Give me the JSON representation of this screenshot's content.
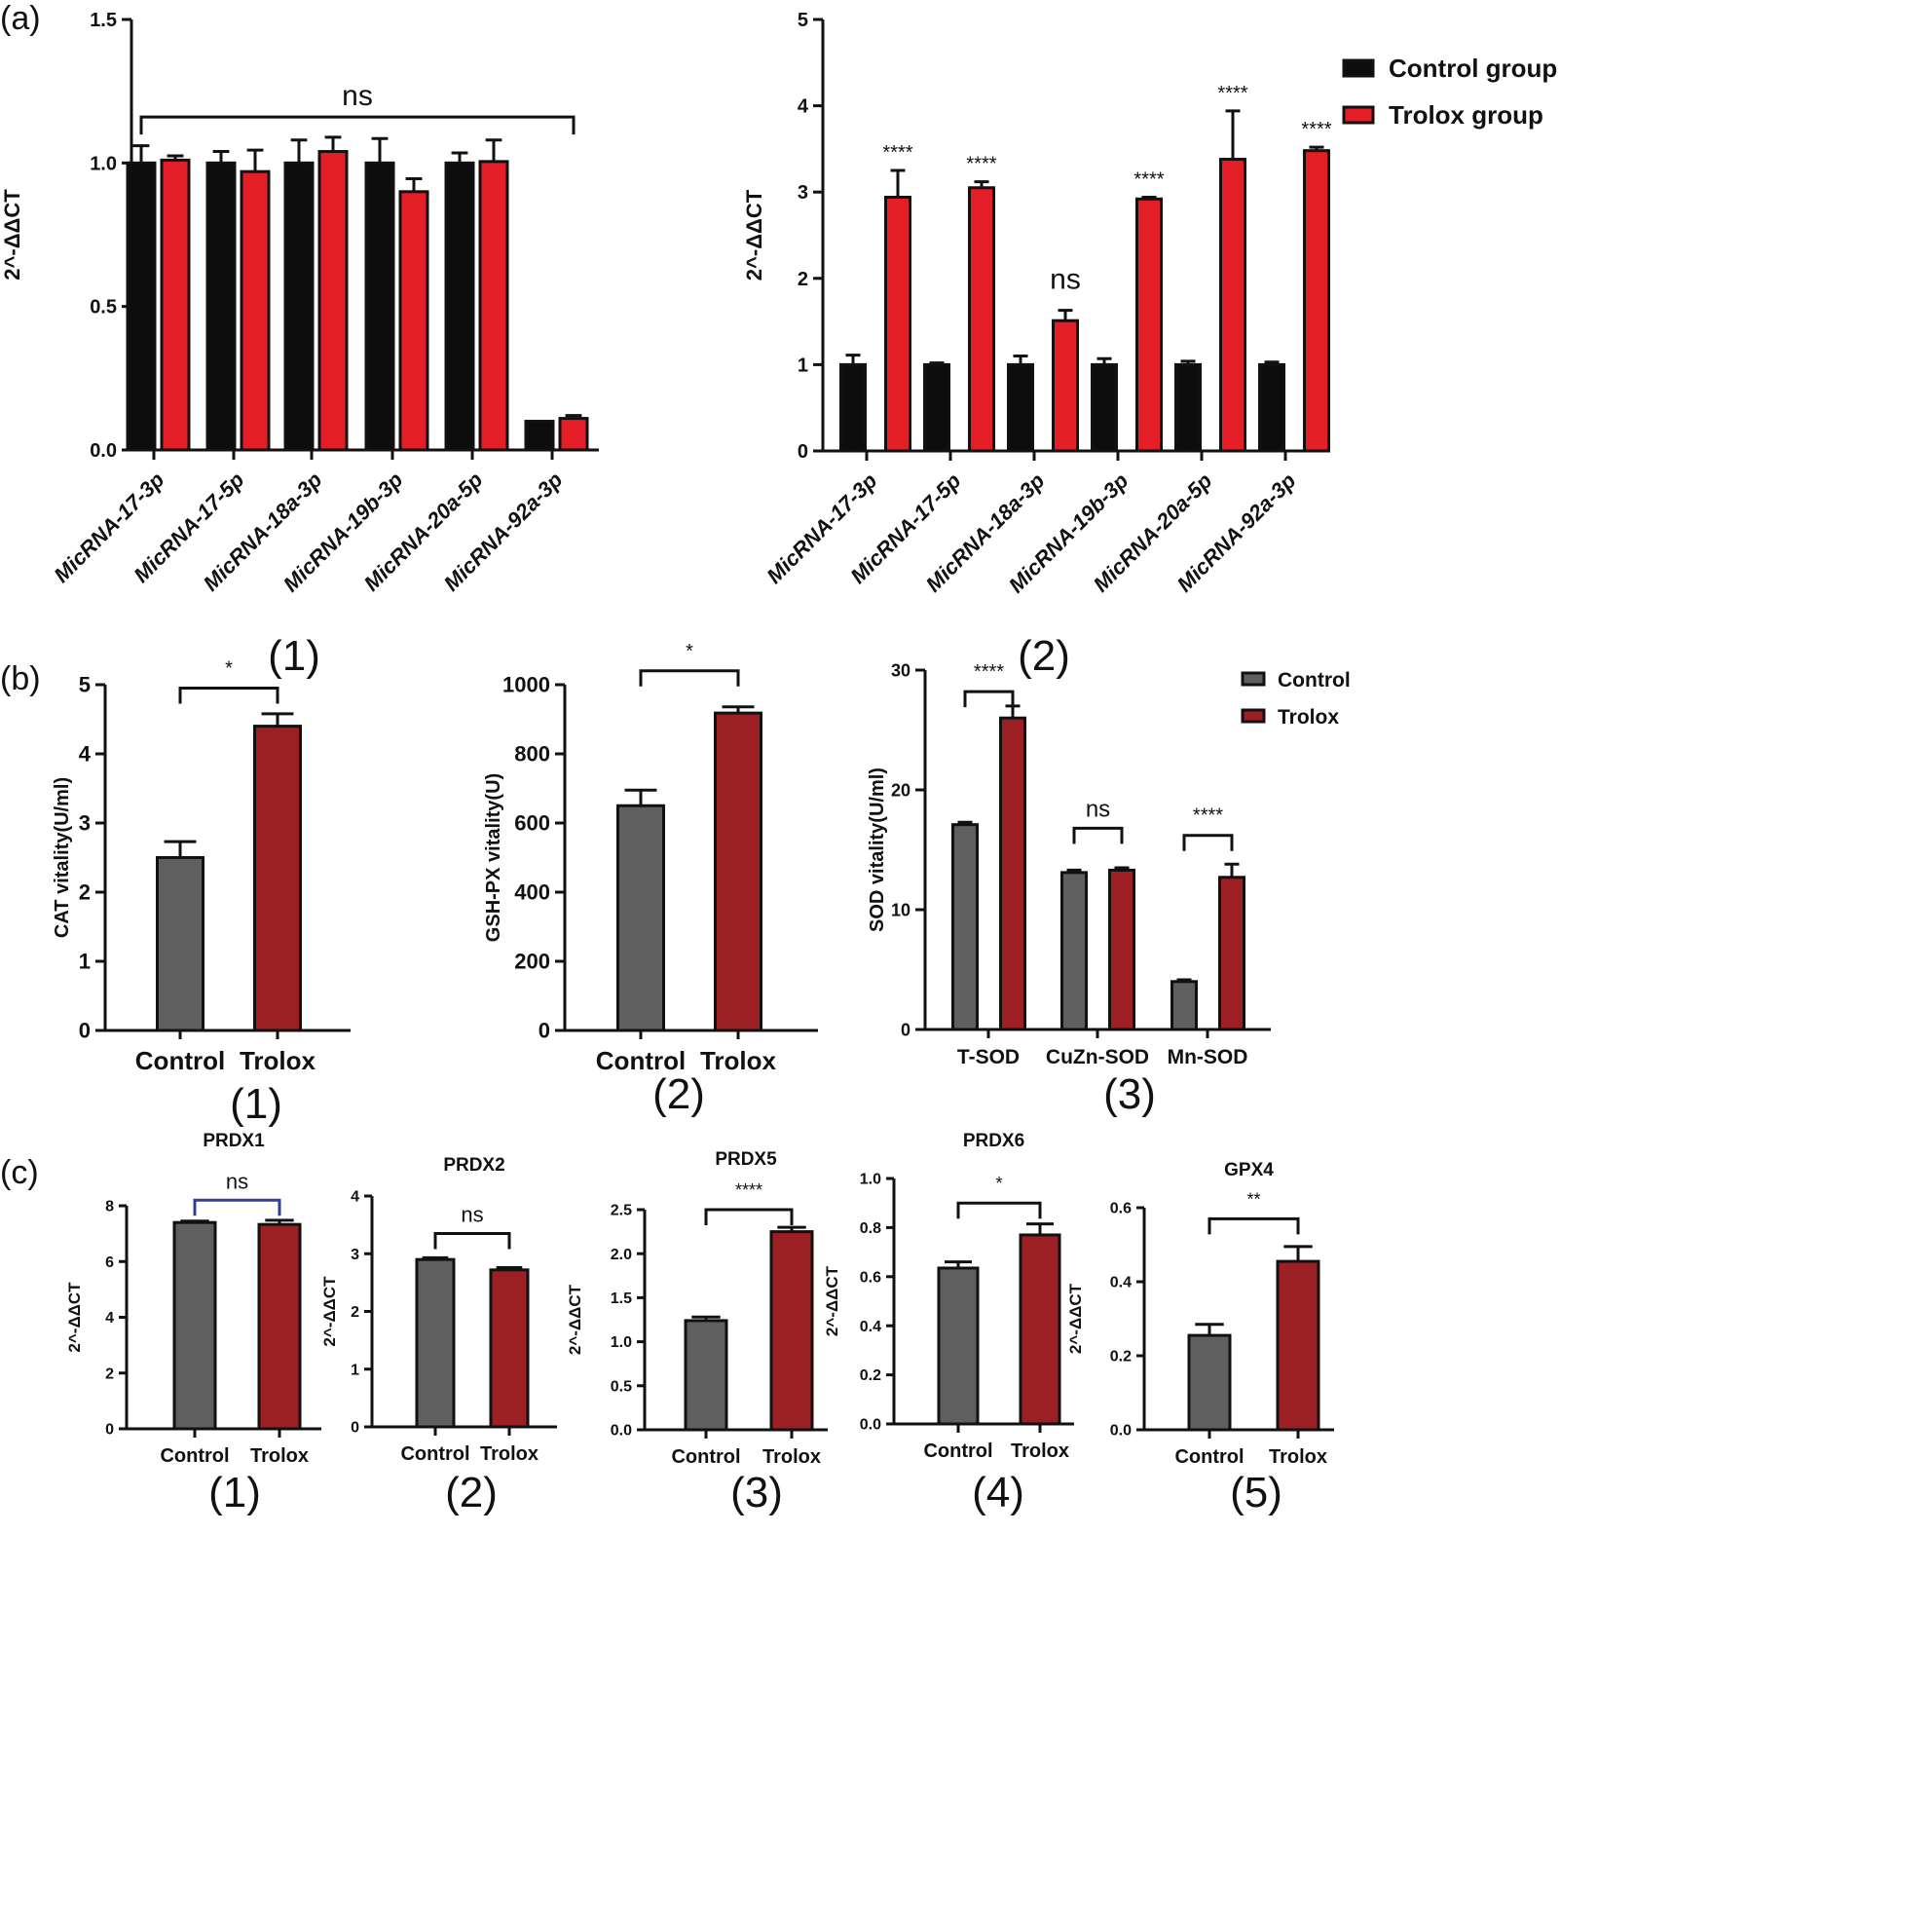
{
  "panel_labels": {
    "a": "(a)",
    "b": "(b)",
    "c": "(c)"
  },
  "captions": {
    "a1": "(1)",
    "a2": "(2)",
    "b1": "(1)",
    "b2": "(2)",
    "b3": "(3)",
    "c1": "(1)",
    "c2": "(2)",
    "c3": "(3)",
    "c4": "(4)",
    "c5": "(5)"
  },
  "colors": {
    "control_a": "#0d0d0d",
    "trolox_a": "#e31e27",
    "control_bc": "#5f5f5f",
    "trolox_bc": "#9c1f24",
    "bracket_blue": "#2f3f9a"
  },
  "legend_a": {
    "items": [
      "Control group",
      "Trolox  group"
    ]
  },
  "legend_b": {
    "items": [
      "Control",
      "Trolox"
    ]
  },
  "chart_data": [
    {
      "id": "a1",
      "type": "bar",
      "title": "",
      "ylabel": "2^-ΔΔCT",
      "xlabel": "",
      "ylim": [
        0,
        1.5
      ],
      "yticks": [
        "0.0",
        "0.5",
        "1.0",
        "1.5"
      ],
      "categories": [
        "MicRNA-17-3p",
        "MicRNA-17-5p",
        "MicRNA-18a-3p",
        "MicRNA-19b-3p",
        "MicRNA-20a-5p",
        "MicRNA-92a-3p"
      ],
      "series": [
        {
          "name": "Control group",
          "values": [
            1.0,
            1.0,
            1.0,
            1.0,
            1.0,
            0.1
          ],
          "errors": [
            0.06,
            0.04,
            0.08,
            0.085,
            0.035,
            0.0
          ]
        },
        {
          "name": "Trolox  group",
          "values": [
            1.01,
            0.97,
            1.04,
            0.9,
            1.005,
            0.11
          ],
          "errors": [
            0.015,
            0.075,
            0.05,
            0.045,
            0.075,
            0.01
          ]
        }
      ],
      "annotations": [
        {
          "text": "ns",
          "from": 0,
          "to": 5,
          "y": 1.16
        }
      ]
    },
    {
      "id": "a2",
      "type": "bar",
      "title": "",
      "ylabel": "2^-ΔΔCT",
      "xlabel": "",
      "ylim": [
        0,
        5
      ],
      "yticks": [
        "0",
        "1",
        "2",
        "3",
        "4",
        "5"
      ],
      "categories": [
        "MicRNA-17-3p",
        "MicRNA-17-5p",
        "MicRNA-18a-3p",
        "MicRNA-19b-3p",
        "MicRNA-20a-5p",
        "MicRNA-92a-3p"
      ],
      "series": [
        {
          "name": "Control group",
          "values": [
            1.0,
            1.0,
            1.0,
            1.0,
            1.0,
            1.0
          ],
          "errors": [
            0.11,
            0.02,
            0.1,
            0.07,
            0.04,
            0.03
          ]
        },
        {
          "name": "Trolox  group",
          "values": [
            2.94,
            3.05,
            1.51,
            2.92,
            3.38,
            3.48
          ],
          "errors": [
            0.31,
            0.07,
            0.12,
            0.02,
            0.56,
            0.04
          ]
        }
      ],
      "significance": [
        "****",
        "****",
        "ns",
        "****",
        "****",
        "****"
      ]
    },
    {
      "id": "b1",
      "type": "bar",
      "title": "",
      "ylabel": "CAT vitality(U/ml)",
      "xlabel": "",
      "ylim": [
        0,
        5
      ],
      "yticks": [
        "0",
        "1",
        "2",
        "3",
        "4",
        "5"
      ],
      "categories": [
        "Control",
        "Trolox"
      ],
      "values": [
        2.5,
        4.4
      ],
      "errors": [
        0.23,
        0.18
      ],
      "annotations": [
        {
          "text": "*",
          "from": 0,
          "to": 1,
          "y": 4.95
        }
      ]
    },
    {
      "id": "b2",
      "type": "bar",
      "title": "",
      "ylabel": "GSH-PX vitality(U)",
      "xlabel": "",
      "ylim": [
        0,
        1000
      ],
      "yticks": [
        "0",
        "200",
        "400",
        "600",
        "800",
        "1000"
      ],
      "categories": [
        "Control",
        "Trolox"
      ],
      "values": [
        650,
        918
      ],
      "errors": [
        45,
        18
      ],
      "annotations": [
        {
          "text": "*",
          "from": 0,
          "to": 1,
          "y": 1040
        }
      ]
    },
    {
      "id": "b3",
      "type": "bar",
      "title": "",
      "ylabel": "SOD vitality(U/ml)",
      "xlabel": "",
      "ylim": [
        0,
        30
      ],
      "yticks": [
        "0",
        "10",
        "20",
        "30"
      ],
      "categories": [
        "T-SOD",
        "CuZn-SOD",
        "Mn-SOD"
      ],
      "series": [
        {
          "name": "Control",
          "values": [
            17.1,
            13.1,
            4.0
          ],
          "errors": [
            0.2,
            0.2,
            0.15
          ]
        },
        {
          "name": "Trolox",
          "values": [
            26.0,
            13.3,
            12.7
          ],
          "errors": [
            1.0,
            0.2,
            1.1
          ]
        }
      ],
      "annotations": [
        {
          "text": "****",
          "group": 0,
          "y": 28.2
        },
        {
          "text": "ns",
          "group": 1,
          "y": 16.8
        },
        {
          "text": "****",
          "group": 2,
          "y": 16.2
        }
      ]
    },
    {
      "id": "c1",
      "type": "bar",
      "title": "PRDX1",
      "ylabel": "2^-ΔΔCT",
      "xlabel": "",
      "ylim": [
        0,
        8
      ],
      "yticks": [
        "0",
        "2",
        "4",
        "6",
        "8"
      ],
      "categories": [
        "Control",
        "Trolox"
      ],
      "values": [
        7.4,
        7.33
      ],
      "errors": [
        0.05,
        0.15
      ],
      "annotations": [
        {
          "text": "ns",
          "from": 0,
          "to": 1,
          "y": 8.2,
          "color": "blue"
        }
      ]
    },
    {
      "id": "c2",
      "type": "bar",
      "title": "PRDX2",
      "ylabel": "2^-ΔΔCT",
      "xlabel": "",
      "ylim": [
        0,
        4
      ],
      "yticks": [
        "0",
        "1",
        "2",
        "3",
        "4"
      ],
      "categories": [
        "Control",
        "Trolox"
      ],
      "values": [
        2.9,
        2.72
      ],
      "errors": [
        0.03,
        0.04
      ],
      "annotations": [
        {
          "text": "ns",
          "from": 0,
          "to": 1,
          "y": 3.35
        }
      ]
    },
    {
      "id": "c3",
      "type": "bar",
      "title": "PRDX5",
      "ylabel": "2^-ΔΔCT",
      "xlabel": "",
      "ylim": [
        0,
        2.5
      ],
      "yticks": [
        "0.0",
        "0.5",
        "1.0",
        "1.5",
        "2.0",
        "2.5"
      ],
      "categories": [
        "Control",
        "Trolox"
      ],
      "values": [
        1.24,
        2.25
      ],
      "errors": [
        0.04,
        0.05
      ],
      "annotations": [
        {
          "text": "****",
          "from": 0,
          "to": 1,
          "y": 2.5
        }
      ]
    },
    {
      "id": "c4",
      "type": "bar",
      "title": "PRDX6",
      "ylabel": "2^-ΔΔCT",
      "xlabel": "",
      "ylim": [
        0,
        1.0
      ],
      "yticks": [
        "0.0",
        "0.2",
        "0.4",
        "0.6",
        "0.8",
        "1.0"
      ],
      "categories": [
        "Control",
        "Trolox"
      ],
      "values": [
        0.635,
        0.77
      ],
      "errors": [
        0.025,
        0.045
      ],
      "annotations": [
        {
          "text": "*",
          "from": 0,
          "to": 1,
          "y": 0.9
        }
      ]
    },
    {
      "id": "c5",
      "type": "bar",
      "title": "GPX4",
      "ylabel": "2^-ΔΔCT",
      "xlabel": "",
      "ylim": [
        0,
        0.6
      ],
      "yticks": [
        "0.0",
        "0.2",
        "0.4",
        "0.6"
      ],
      "categories": [
        "Control",
        "Trolox"
      ],
      "values": [
        0.255,
        0.455
      ],
      "errors": [
        0.03,
        0.04
      ],
      "annotations": [
        {
          "text": "**",
          "from": 0,
          "to": 1,
          "y": 0.57
        }
      ]
    }
  ]
}
